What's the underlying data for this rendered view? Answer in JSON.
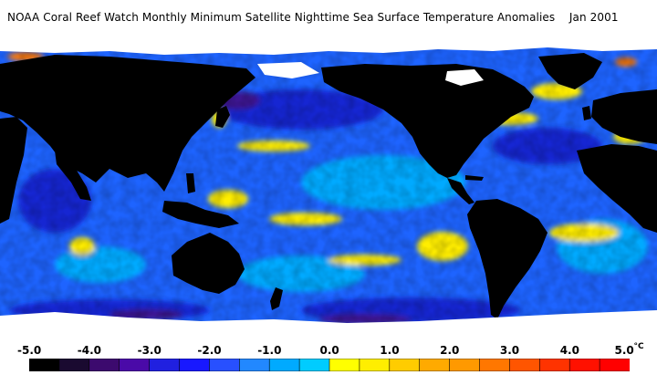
{
  "title": "NOAA Coral Reef Watch Monthly Minimum Satellite Nighttime Sea Surface Temperature Anomalies    Jan 2001",
  "legend": {
    "ticks": [
      "-5.0",
      "-4.0",
      "-3.0",
      "-2.0",
      "-1.0",
      "0.0",
      "1.0",
      "2.0",
      "3.0",
      "4.0",
      "5.0"
    ],
    "unit": "°C",
    "colors": [
      "#000000",
      "#1a0a30",
      "#3c0a6e",
      "#4a0aa8",
      "#2020e0",
      "#1818ff",
      "#2850ff",
      "#2288ff",
      "#00aaff",
      "#00ccff",
      "#ffff00",
      "#ffee00",
      "#ffcc00",
      "#ffaa00",
      "#ff9900",
      "#ff7700",
      "#ff5500",
      "#ff3300",
      "#ff1100",
      "#ff0000"
    ]
  },
  "palette": {
    "land": "#000000",
    "ice": "#ffffff",
    "ocean_base": "#1e64ff",
    "ocean_cool": "#1428d2",
    "ocean_deep": "#3c1490",
    "ocean_mild": "#00aaff",
    "anomaly_warm": "#ffee00",
    "anomaly_hot": "#ff7700"
  }
}
